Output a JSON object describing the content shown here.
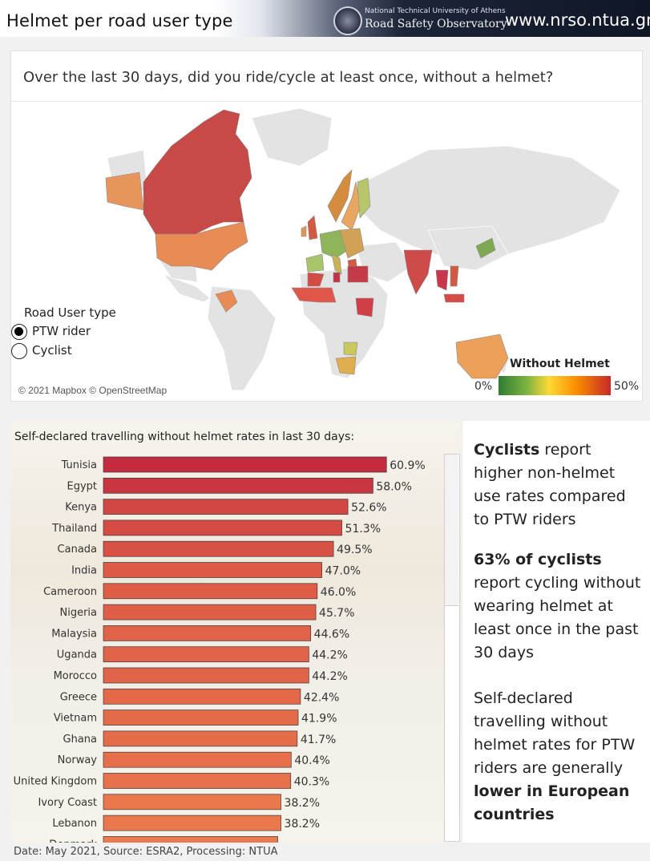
{
  "header": {
    "title": "Helmet per road user type",
    "org_line1": "National Technical University of Athens",
    "org_line2": "Road Safety Observatory",
    "url": "www.nrso.ntua.gr"
  },
  "map": {
    "question": "Over the last 30 days, did you ride/cycle at least once, without a helmet?",
    "road_user_type_label": "Road User type",
    "options": [
      {
        "label": "PTW rider",
        "selected": true
      },
      {
        "label": "Cyclist",
        "selected": false
      }
    ],
    "copyright": "© 2021 Mapbox © OpenStreetMap",
    "color_legend": {
      "title": "Without Helmet",
      "min_label": "0%",
      "max_label": "50%",
      "colors": [
        "#2e7d32",
        "#7cb342",
        "#fdd835",
        "#fb8c00",
        "#c62828"
      ]
    }
  },
  "chart_title": "Self-declared travelling without helmet rates in last 30 days:",
  "chart_data": {
    "type": "bar",
    "orientation": "horizontal",
    "categories": [
      "Tunisia",
      "Egypt",
      "Kenya",
      "Thailand",
      "Canada",
      "India",
      "Cameroon",
      "Nigeria",
      "Malaysia",
      "Uganda",
      "Morocco",
      "Greece",
      "Vietnam",
      "Ghana",
      "Norway",
      "United Kingdom",
      "Ivory Coast",
      "Lebanon",
      "Denmark"
    ],
    "values": [
      60.9,
      58.0,
      52.6,
      51.3,
      49.5,
      47.0,
      46.0,
      45.7,
      44.6,
      44.2,
      44.2,
      42.4,
      41.9,
      41.7,
      40.4,
      40.3,
      38.2,
      38.2,
      37.5
    ],
    "labels": [
      "60.9%",
      "58.0%",
      "52.6%",
      "51.3%",
      "49.5%",
      "47.0%",
      "46.0%",
      "45.7%",
      "44.6%",
      "44.2%",
      "44.2%",
      "42.4%",
      "41.9%",
      "41.7%",
      "40.4%",
      "40.3%",
      "38.2%",
      "38.2%",
      ""
    ],
    "xlim": [
      0,
      70
    ],
    "color_scale": {
      "low": "#ec7a4c",
      "high": "#c42b3e"
    }
  },
  "side_panel": {
    "p1_bold": "Cyclists",
    "p1_text": " report higher non-helmet use rates compared to PTW riders",
    "p2_bold": "63% of cyclists",
    "p2_text": " report cycling without wearing helmet at least once in the past 30 days",
    "p3_text": "Self-declared travelling without helmet rates for PTW riders are generally ",
    "p3_bold": "lower in European countries"
  },
  "footer": "Date: May 2021, Source: ESRA2, Processing: NTUA"
}
